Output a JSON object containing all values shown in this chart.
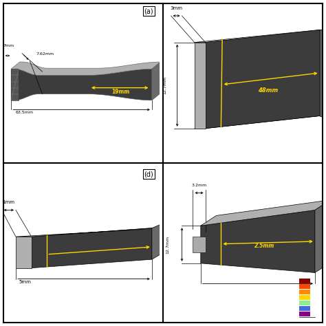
{
  "bg_color": "#ffffff",
  "panel_bg": "#e8e8e8",
  "dark": "#3c3c3c",
  "darker": "#2a2a2a",
  "light_top": "#b0b0b0",
  "right_face": "#6a6a6a",
  "yellow": "#FFD700",
  "black": "#000000",
  "white": "#ffffff",
  "panel_a_label": "(a)",
  "panel_d_label": "(d)",
  "dims_a": {
    "w": "7mm",
    "neck": "7.62mm",
    "len": "19mm",
    "total": "63.5mm"
  },
  "dims_b": {
    "thick": "3mm",
    "h": "12.7mm",
    "len": "48mm"
  },
  "dims_c": {
    "w": "1mm",
    "len": "5mm"
  },
  "dims_d": {
    "thick": "3.2mm",
    "h": "12.7mm",
    "len": "2.5mm"
  }
}
